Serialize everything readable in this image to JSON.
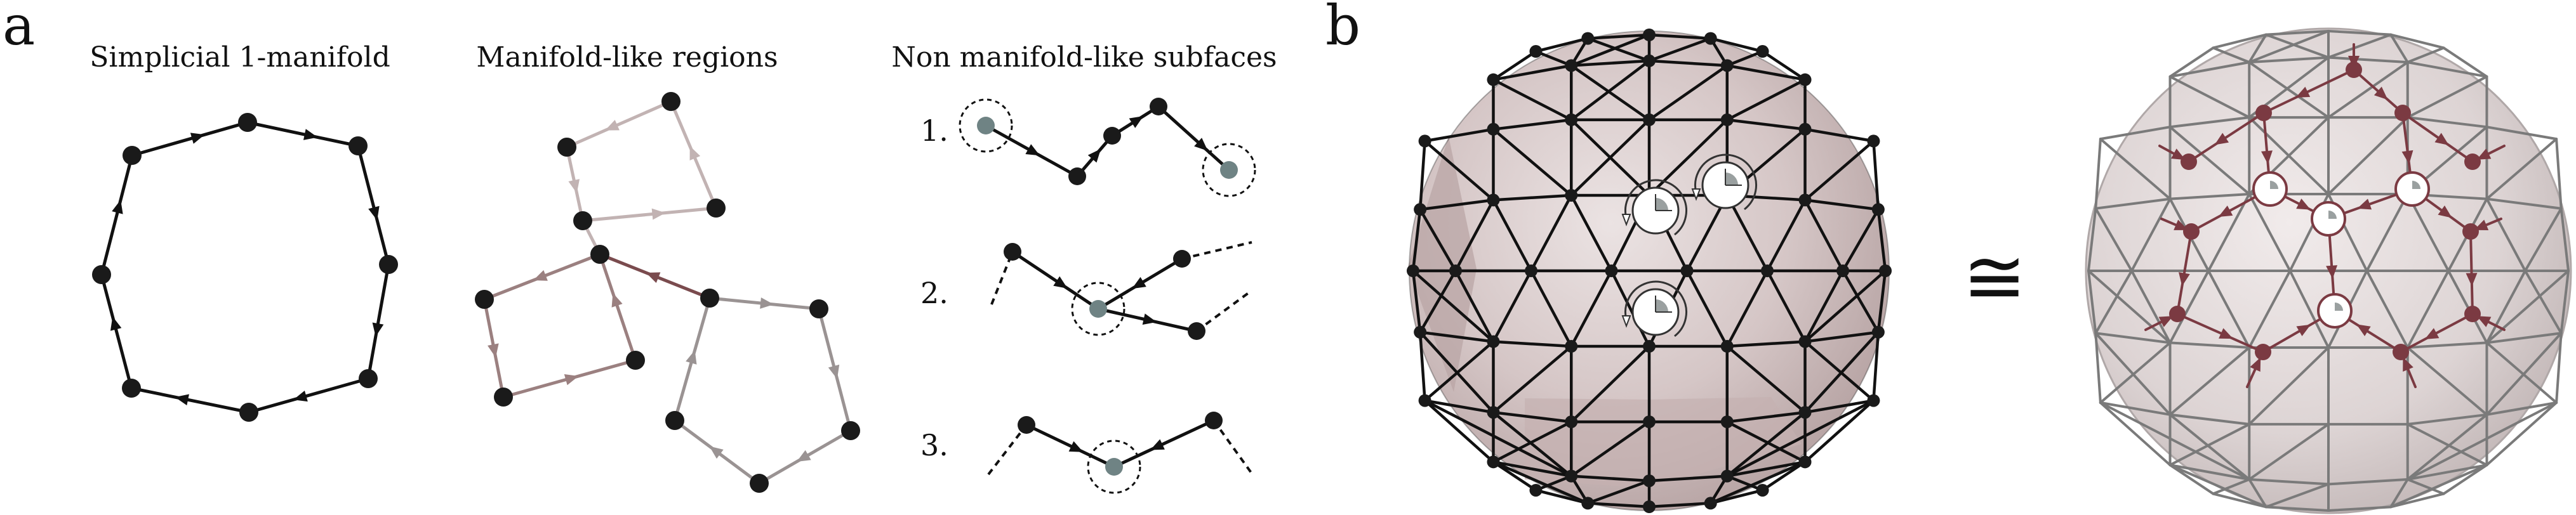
{
  "panel_a": {
    "letter": "a",
    "titles": {
      "simplicial": "Simplicial 1-manifold",
      "regions": "Manifold-like regions",
      "non_manifold": "Non manifold-like subfaces"
    },
    "cases": [
      "1.",
      "2.",
      "3."
    ]
  },
  "panel_b": {
    "letter": "b",
    "relation_symbol": "≅"
  },
  "colors": {
    "edge": "#111111",
    "vertex": "#1a1a1a",
    "highlight_vertex": "#6f8384",
    "region_light": "#c2b3b3",
    "region_mid": "#9b8080",
    "region_dark": "#7a4b4e",
    "region_gray": "#9a9393",
    "face_fill": "#d9cccc",
    "dual_graph": "#7b3a42",
    "dual_mesh_edge": "#7a7a7a"
  }
}
